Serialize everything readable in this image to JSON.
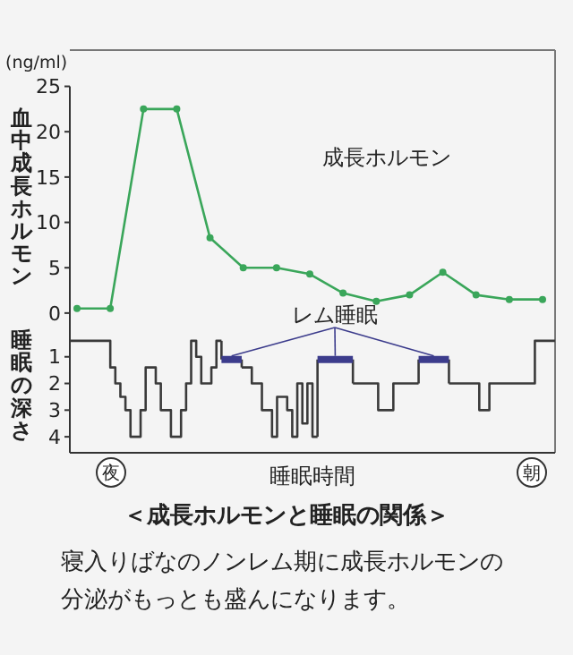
{
  "chart_data": [
    {
      "type": "line",
      "ylabel": "血中成長ホルモン",
      "annotations": [
        "(ng/ml)"
      ],
      "categories": [
        null,
        null,
        null,
        null,
        null,
        null,
        null,
        null,
        null,
        null,
        null,
        null,
        null,
        null,
        null
      ],
      "ylim": [
        -1,
        29
      ],
      "yticks": [
        0,
        5,
        10,
        15,
        20,
        25
      ],
      "tick_labels": "y",
      "marker": "circle",
      "series": [
        {
          "name": "成長ホルモン",
          "color": "#3aa65a",
          "values": [
            0.5,
            0.5,
            22.5,
            22.5,
            8.3,
            5,
            5,
            4.3,
            2.2,
            1.3,
            2,
            4.5,
            2,
            1.5,
            1.5
          ]
        }
      ]
    },
    {
      "type": "step",
      "title": "＜成長ホルモンと睡眠の関係＞",
      "xlabel": "睡眠時間",
      "ylabel": "睡眠の深さ",
      "annotations": [
        "夜",
        "朝",
        "寝入りばなのノンレム期に成長ホルモンの分泌がもっとも盛んになります。"
      ],
      "categories": [
        null,
        null,
        null,
        null,
        null,
        null,
        null,
        null,
        null,
        null,
        null,
        null,
        null,
        null,
        null,
        null,
        null,
        null,
        null,
        null,
        null,
        null,
        null,
        null,
        null,
        null,
        null,
        null,
        null,
        null,
        null,
        null,
        null,
        null,
        null,
        null,
        null,
        null,
        null,
        null,
        null,
        null,
        null,
        null,
        null,
        null,
        null,
        null,
        null,
        null,
        null,
        null,
        null,
        null,
        null,
        null,
        null,
        null,
        null,
        null,
        null,
        null,
        null,
        null,
        null,
        null,
        null,
        null,
        null,
        null,
        null,
        null,
        null,
        null,
        null,
        null,
        null,
        null,
        null,
        null,
        null,
        null,
        null,
        null,
        null,
        null,
        null,
        null,
        null,
        null,
        null,
        null,
        null,
        null,
        null,
        null
      ],
      "ylim": [
        4.6,
        -0.3
      ],
      "yticks": [
        1,
        2,
        3,
        4
      ],
      "tick_labels": "y",
      "series": [
        {
          "color": "#3a3a3a",
          "values": [
            0.4,
            0.4,
            0.4,
            0.4,
            0.4,
            0.4,
            0.4,
            0.4,
            1.4,
            2,
            2.5,
            3,
            4,
            4,
            3,
            1.4,
            1.4,
            2,
            3,
            3,
            4,
            4,
            3,
            2,
            0.4,
            1,
            2,
            2,
            1.4,
            0.4,
            null,
            null,
            null,
            null,
            1.4,
            1.4,
            2,
            2,
            3,
            3,
            4,
            2.5,
            2.5,
            3,
            4,
            2,
            3.5,
            2,
            4,
            null,
            null,
            null,
            null,
            null,
            null,
            null,
            2,
            2,
            2,
            2,
            2,
            3,
            3,
            3,
            2,
            2,
            2,
            2,
            2,
            null,
            null,
            null,
            null,
            null,
            null,
            2,
            2,
            2,
            2,
            2,
            2,
            3,
            3,
            2,
            2,
            2,
            2,
            2,
            2,
            2,
            2,
            2,
            0.4,
            0.4,
            0.4,
            0.4
          ]
        },
        {
          "type": "step",
          "name": "レム睡眠",
          "color": "#3c3c8c",
          "values": [
            null,
            null,
            null,
            null,
            null,
            null,
            null,
            null,
            null,
            null,
            null,
            null,
            null,
            null,
            null,
            null,
            null,
            null,
            null,
            null,
            null,
            null,
            null,
            null,
            null,
            null,
            null,
            null,
            null,
            null,
            1.1,
            1.1,
            1.1,
            1.1,
            null,
            null,
            null,
            null,
            null,
            null,
            null,
            null,
            null,
            null,
            null,
            null,
            null,
            null,
            null,
            1.1,
            1.1,
            1.1,
            1.1,
            1.1,
            1.1,
            1.1,
            null,
            null,
            null,
            null,
            null,
            null,
            null,
            null,
            null,
            null,
            null,
            null,
            null,
            1.1,
            1.1,
            1.1,
            1.1,
            1.1,
            1.1,
            null,
            null,
            null,
            null,
            null,
            null,
            null,
            null,
            null,
            null,
            null,
            null,
            null,
            null,
            null,
            null,
            null,
            null,
            null,
            null,
            null
          ]
        }
      ]
    }
  ]
}
